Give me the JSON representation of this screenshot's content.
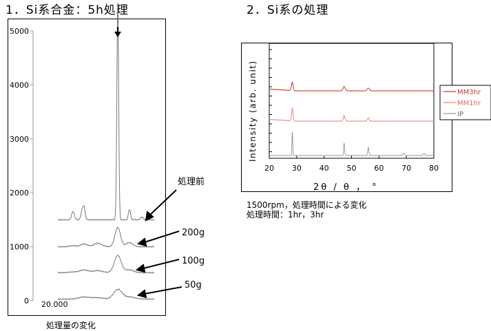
{
  "left": {
    "heading": "1．Si系合金：5h処理",
    "caption": "処理量の変化",
    "chart_data": {
      "type": "line",
      "yticks": [
        "5000",
        "4000",
        "3000",
        "2000",
        "1000",
        "0"
      ],
      "x_tick_label": "20.000",
      "ylim": [
        0,
        5000
      ],
      "series": [
        {
          "name": "処理前",
          "offset": 1500
        },
        {
          "name": "200g",
          "offset": 1000
        },
        {
          "name": "100g",
          "offset": 520
        },
        {
          "name": "50g",
          "offset": 30
        }
      ]
    }
  },
  "right": {
    "heading": "2．Si系の処理",
    "caption_line1": "1500rpm，処理時間による変化",
    "caption_line2": "処理時間：1hr，3hr",
    "chart_data": {
      "type": "line",
      "ylabel": "Intensity (arb. unit)",
      "xlabel": "2θ / θ ，  °",
      "xlim": [
        20,
        80
      ],
      "xticks": [
        "20",
        "30",
        "40",
        "50",
        "60",
        "70",
        "80"
      ],
      "legend_placement": "right",
      "series": [
        {
          "name": "MM3hr",
          "color": "#c0392b"
        },
        {
          "name": "MM1hr",
          "color": "#f08080"
        },
        {
          "name": "IP",
          "color": "#9a9a9a"
        }
      ]
    }
  }
}
